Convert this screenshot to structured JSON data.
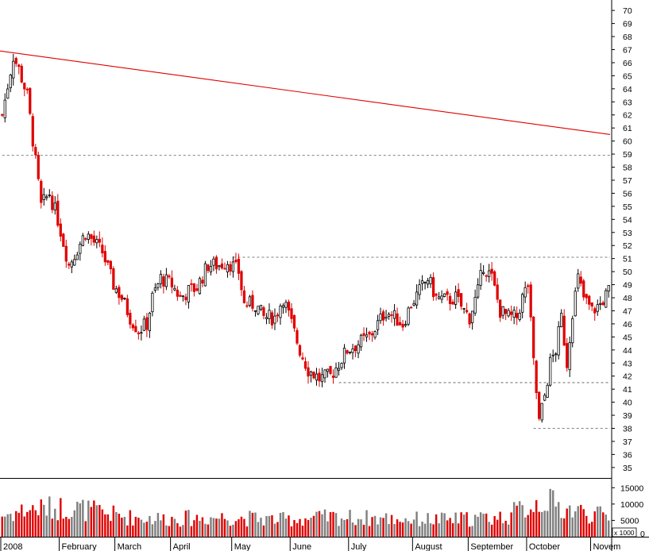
{
  "chart_data": {
    "type": "candlestick",
    "title": "",
    "xlabel": "",
    "ylabel": "",
    "price_axis": {
      "ticks": [
        35,
        36,
        37,
        38,
        39,
        40,
        41,
        42,
        43,
        44,
        45,
        46,
        47,
        48,
        49,
        50,
        51,
        52,
        53,
        54,
        55,
        56,
        57,
        58,
        59,
        60,
        61,
        62,
        63,
        64,
        65,
        66,
        67,
        68,
        69,
        70
      ],
      "ylim": [
        34.2,
        70.8
      ],
      "side": "right"
    },
    "volume_axis": {
      "ticks": [
        0,
        5000,
        10000,
        15000
      ],
      "tick_labels": [
        "0",
        "5000",
        "10000",
        "15000"
      ],
      "ylim": [
        0,
        17500
      ],
      "unit_label": "x 1000"
    },
    "months": [
      "2008",
      "February",
      "March",
      "April",
      "May",
      "June",
      "July",
      "August",
      "September",
      "October",
      "Novem"
    ],
    "colors": {
      "down": "#e00000",
      "up": "#000000",
      "volume_down": "#e00000",
      "volume_up": "#808080",
      "trendline": "#e00000",
      "guide": "#555555"
    },
    "annotations": {
      "trendline": {
        "type": "trendline",
        "start": {
          "day": 0,
          "price": 66.9
        },
        "end": {
          "day": 218,
          "price": 60.5
        }
      },
      "hlines": [
        {
          "price": 58.9,
          "from_day": 0
        },
        {
          "price": 51.1,
          "from_day": 83
        },
        {
          "price": 41.5,
          "from_day": 121
        },
        {
          "price": 38.0,
          "from_day": 191
        }
      ]
    },
    "waypoints": [
      [
        0,
        62
      ],
      [
        4,
        66.5
      ],
      [
        6,
        65.5
      ],
      [
        9,
        63.5
      ],
      [
        14,
        55
      ],
      [
        17,
        56
      ],
      [
        20,
        54
      ],
      [
        24,
        50.5
      ],
      [
        30,
        53
      ],
      [
        36,
        51.5
      ],
      [
        40,
        49
      ],
      [
        43,
        48
      ],
      [
        46,
        46.5
      ],
      [
        49,
        45.5
      ],
      [
        52,
        46
      ],
      [
        54,
        48
      ],
      [
        57,
        49.5
      ],
      [
        61,
        49
      ],
      [
        64,
        48
      ],
      [
        67,
        48.5
      ],
      [
        70,
        48.8
      ],
      [
        74,
        50.5
      ],
      [
        78,
        50.5
      ],
      [
        81,
        50.8
      ],
      [
        85,
        50
      ],
      [
        87,
        47.5
      ],
      [
        91,
        47.5
      ],
      [
        94,
        46.5
      ],
      [
        98,
        46.5
      ],
      [
        101,
        48
      ],
      [
        104,
        46
      ],
      [
        107,
        44
      ],
      [
        110,
        42.5
      ],
      [
        114,
        41.8
      ],
      [
        118,
        42
      ],
      [
        121,
        43
      ],
      [
        124,
        44
      ],
      [
        128,
        44.5
      ],
      [
        132,
        45
      ],
      [
        135,
        46
      ],
      [
        138,
        47
      ],
      [
        141,
        46.5
      ],
      [
        144,
        46
      ],
      [
        147,
        47.5
      ],
      [
        150,
        48.5
      ],
      [
        153,
        49.5
      ],
      [
        156,
        48
      ],
      [
        160,
        47.8
      ],
      [
        163,
        48
      ],
      [
        166,
        47
      ],
      [
        168,
        46.5
      ],
      [
        171,
        48.5
      ],
      [
        173,
        50.5
      ],
      [
        176,
        49.5
      ],
      [
        179,
        47
      ],
      [
        182,
        46.5
      ],
      [
        185,
        46.5
      ],
      [
        187,
        48
      ],
      [
        189,
        49
      ],
      [
        191,
        43
      ],
      [
        193,
        38.5
      ],
      [
        195,
        40.5
      ],
      [
        197,
        43
      ],
      [
        199,
        44
      ],
      [
        201,
        46.5
      ],
      [
        203,
        43
      ],
      [
        205,
        47
      ],
      [
        207,
        49.5
      ],
      [
        209,
        48
      ],
      [
        212,
        47
      ],
      [
        215,
        47.5
      ],
      [
        218,
        48.5
      ]
    ],
    "volume_waypoints": [
      [
        0,
        6500
      ],
      [
        10,
        8500
      ],
      [
        25,
        9000
      ],
      [
        45,
        6000
      ],
      [
        60,
        5500
      ],
      [
        80,
        6000
      ],
      [
        100,
        5200
      ],
      [
        120,
        6000
      ],
      [
        140,
        5500
      ],
      [
        160,
        5200
      ],
      [
        180,
        6000
      ],
      [
        190,
        9500
      ],
      [
        195,
        11500
      ],
      [
        200,
        9000
      ],
      [
        218,
        6000
      ]
    ]
  }
}
